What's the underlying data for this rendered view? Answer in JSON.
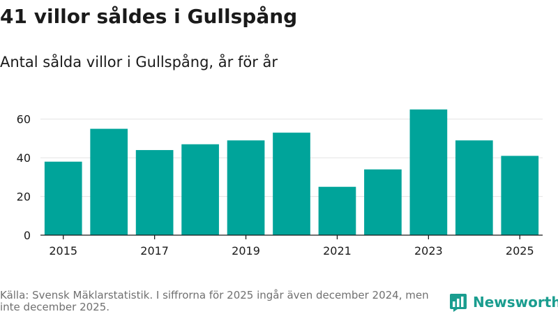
{
  "title": "41 villor såldes i Gullspång",
  "subtitle": "Antal sålda villor i Gullspång, år för år",
  "chart_data": {
    "type": "bar",
    "x": [
      2015,
      2016,
      2017,
      2018,
      2019,
      2020,
      2021,
      2022,
      2023,
      2024,
      2025
    ],
    "values": [
      38,
      55,
      44,
      47,
      49,
      53,
      25,
      34,
      65,
      49,
      41
    ],
    "x_ticks": [
      "2015",
      "2017",
      "2019",
      "2021",
      "2023",
      "2025"
    ],
    "y_ticks": [
      0,
      20,
      40,
      60
    ],
    "ylim": [
      0,
      70
    ],
    "grid": true,
    "bar_color": "#00a49a"
  },
  "footer": {
    "source": "Källa: Svensk Mäklarstatistik. I siffrorna för 2025 ingår även december 2024, men inte december 2025."
  },
  "brand": {
    "name": "Newsworthy",
    "icon": "newsworthy-logo-icon",
    "color": "#1a9d8f"
  }
}
